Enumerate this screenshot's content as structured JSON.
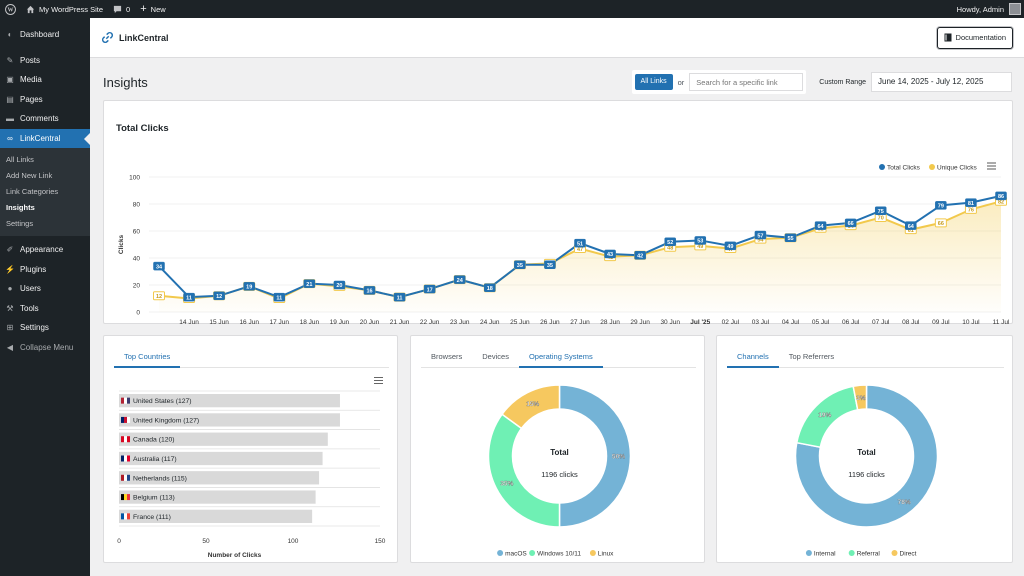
{
  "admin_bar": {
    "site_name": "My WordPress Site",
    "comments_count": "0",
    "new_label": "New",
    "greeting": "Howdy, Admin"
  },
  "sidebar": {
    "items": [
      {
        "label": "Dashboard",
        "icon": "dashboard-icon"
      },
      {
        "label": "Posts",
        "icon": "pin-icon"
      },
      {
        "label": "Media",
        "icon": "media-icon"
      },
      {
        "label": "Pages",
        "icon": "pages-icon"
      },
      {
        "label": "Comments",
        "icon": "comments-icon"
      },
      {
        "label": "LinkCentral",
        "icon": "link-icon"
      }
    ],
    "submenu": [
      "All Links",
      "Add New Link",
      "Link Categories",
      "Insights",
      "Settings"
    ],
    "items2": [
      {
        "label": "Appearance",
        "icon": "brush-icon"
      },
      {
        "label": "Plugins",
        "icon": "plugin-icon"
      },
      {
        "label": "Users",
        "icon": "users-icon"
      },
      {
        "label": "Tools",
        "icon": "wrench-icon"
      },
      {
        "label": "Settings",
        "icon": "settings-icon"
      },
      {
        "label": "Collapse Menu",
        "icon": "collapse-icon"
      }
    ]
  },
  "plugin_header": {
    "title": "LinkCentral",
    "doc_button": "Documentation"
  },
  "page": {
    "title": "Insights",
    "all_links": "All Links",
    "or": "or",
    "search_placeholder": "Search for a specific link",
    "range_label": "Custom Range",
    "range_value": "June 14, 2025 - July 12, 2025"
  },
  "colors": {
    "total": "#2271b1",
    "unique": "#f2c94c",
    "accent": "#2271b1"
  },
  "chart_data": [
    {
      "type": "line",
      "title": "Total Clicks",
      "ylabel": "Clicks",
      "ylim": [
        0,
        100
      ],
      "yticks": [
        0,
        20,
        40,
        60,
        80,
        100
      ],
      "legend_position": "top-right",
      "categories": [
        "",
        "14 Jun",
        "15 Jun",
        "16 Jun",
        "17 Jun",
        "18 Jun",
        "19 Jun",
        "20 Jun",
        "21 Jun",
        "22 Jun",
        "23 Jun",
        "24 Jun",
        "25 Jun",
        "26 Jun",
        "27 Jun",
        "28 Jun",
        "29 Jun",
        "30 Jun",
        "Jul '25",
        "02 Jul",
        "03 Jul",
        "04 Jul",
        "05 Jul",
        "06 Jul",
        "07 Jul",
        "08 Jul",
        "09 Jul",
        "10 Jul",
        "11 Jul"
      ],
      "series": [
        {
          "name": "Total Clicks",
          "values": [
            34,
            11,
            12,
            19,
            11,
            21,
            20,
            16,
            11,
            17,
            24,
            18,
            35,
            35,
            51,
            43,
            42,
            52,
            53,
            49,
            57,
            55,
            64,
            66,
            75,
            64,
            79,
            81,
            86
          ]
        },
        {
          "name": "Unique Clicks",
          "values": [
            12,
            10,
            12,
            19,
            10,
            21,
            19,
            16,
            11,
            17,
            24,
            18,
            35,
            36,
            47,
            41,
            42,
            48,
            49,
            47,
            54,
            55,
            62,
            64,
            70,
            61,
            66,
            76,
            82
          ]
        }
      ]
    },
    {
      "type": "bar",
      "title": "Top Countries",
      "xlabel": "Number of Clicks",
      "xlim": [
        0,
        150
      ],
      "xticks": [
        0,
        50,
        100,
        150
      ],
      "categories": [
        "United States (127)",
        "United Kingdom (127)",
        "Canada (120)",
        "Australia (117)",
        "Netherlands (115)",
        "Belgium (113)",
        "France (111)"
      ],
      "flags": [
        "us",
        "gb",
        "ca",
        "au",
        "nl",
        "be",
        "fr"
      ],
      "values": [
        127,
        127,
        120,
        117,
        115,
        113,
        111
      ]
    },
    {
      "type": "pie",
      "tabs": [
        "Browsers",
        "Devices",
        "Operating Systems"
      ],
      "active_tab": 2,
      "center_title": "Total",
      "center_value": "1196 clicks",
      "labels": [
        "macOS",
        "Windows 10/11",
        "Linux"
      ],
      "values": [
        50,
        35,
        15
      ],
      "display": [
        "50%",
        "35%",
        "15%"
      ],
      "colors": [
        "#74b3d6",
        "#6ff0b4",
        "#f6c85f"
      ]
    },
    {
      "type": "pie",
      "tabs": [
        "Channels",
        "Top Referrers"
      ],
      "active_tab": 0,
      "center_title": "Total",
      "center_value": "1196 clicks",
      "labels": [
        "Internal",
        "Referral",
        "Direct"
      ],
      "values": [
        78,
        19,
        3
      ],
      "display": [
        "78%",
        "19%",
        "3%"
      ],
      "colors": [
        "#74b3d6",
        "#6ff0b4",
        "#f6c85f"
      ]
    }
  ]
}
